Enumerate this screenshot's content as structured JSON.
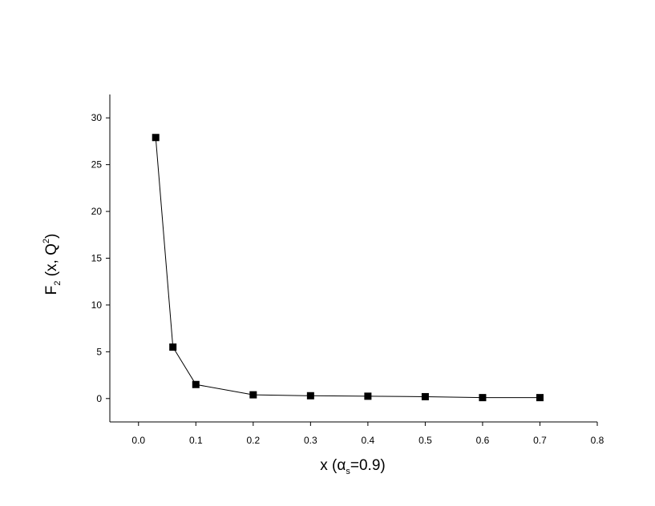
{
  "chart_data": {
    "type": "line",
    "x_label_parts": [
      "x  (α",
      "s",
      "=0.9)"
    ],
    "y_label_parts": [
      "F",
      "2",
      " (x, Q",
      "2",
      ")"
    ],
    "x": [
      0.03,
      0.06,
      0.1,
      0.2,
      0.3,
      0.4,
      0.5,
      0.6,
      0.7
    ],
    "series": [
      {
        "color": "#000000",
        "values": [
          27.9,
          5.5,
          1.5,
          0.4,
          0.3,
          0.25,
          0.2,
          0.1,
          0.1
        ]
      }
    ],
    "xlim": [
      -0.05,
      0.8
    ],
    "ylim": [
      -2.5,
      32.5
    ],
    "xticks": [
      {
        "value": 0,
        "label": "0.0"
      },
      {
        "value": 0.1,
        "label": "0.1"
      },
      {
        "value": 0.2,
        "label": "0.2"
      },
      {
        "value": 0.3,
        "label": "0.3"
      },
      {
        "value": 0.4,
        "label": "0.4"
      },
      {
        "value": 0.5,
        "label": "0.5"
      },
      {
        "value": 0.6,
        "label": "0.6"
      },
      {
        "value": 0.7,
        "label": "0.7"
      },
      {
        "value": 0.8,
        "label": "0.8"
      }
    ],
    "yticks": [
      0,
      5,
      10,
      15,
      20,
      25,
      30
    ],
    "grid": false
  }
}
